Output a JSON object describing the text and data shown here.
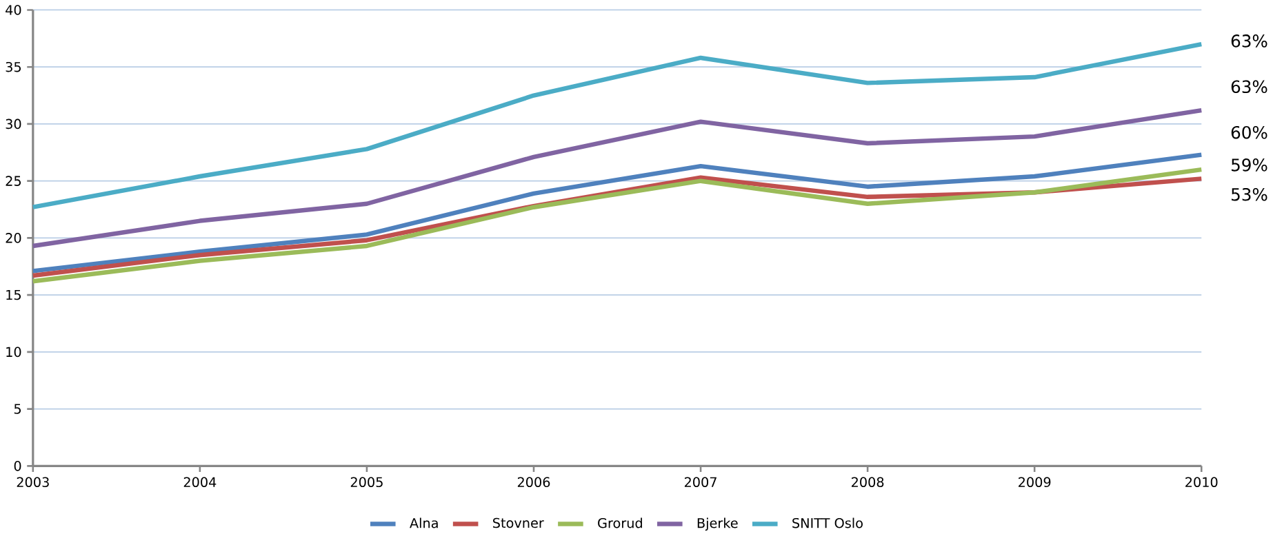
{
  "chart_data": {
    "type": "line",
    "x": [
      2003,
      2004,
      2005,
      2006,
      2007,
      2008,
      2009,
      2010
    ],
    "series": [
      {
        "name": "Alna",
        "color": "#4f81bd",
        "values": [
          17.1,
          18.8,
          20.3,
          23.9,
          26.3,
          24.5,
          25.4,
          27.3
        ]
      },
      {
        "name": "Stovner",
        "color": "#c0504d",
        "values": [
          16.7,
          18.5,
          19.8,
          22.8,
          25.3,
          23.6,
          24.0,
          25.2
        ]
      },
      {
        "name": "Grorud",
        "color": "#9bbb59",
        "values": [
          16.2,
          18.0,
          19.3,
          22.7,
          25.0,
          23.0,
          24.0,
          26.0
        ]
      },
      {
        "name": "Bjerke",
        "color": "#8064a2",
        "values": [
          19.3,
          21.5,
          23.0,
          27.1,
          30.2,
          28.3,
          28.9,
          31.2
        ]
      },
      {
        "name": "SNITT Oslo",
        "color": "#4bacc6",
        "values": [
          22.7,
          25.4,
          27.8,
          32.5,
          35.8,
          33.6,
          34.1,
          37.0
        ]
      }
    ],
    "xlim": [
      2003,
      2010
    ],
    "ylim": [
      0,
      40
    ],
    "xticks": [
      2003,
      2004,
      2005,
      2006,
      2007,
      2008,
      2009,
      2010
    ],
    "yticks": [
      0,
      5,
      10,
      15,
      20,
      25,
      30,
      35,
      40
    ],
    "annotations": [
      "63%",
      "63%",
      "60%",
      "59%",
      "53%"
    ],
    "grid": "y",
    "legend": "bottom",
    "marker": "none",
    "line_style": "solid"
  }
}
